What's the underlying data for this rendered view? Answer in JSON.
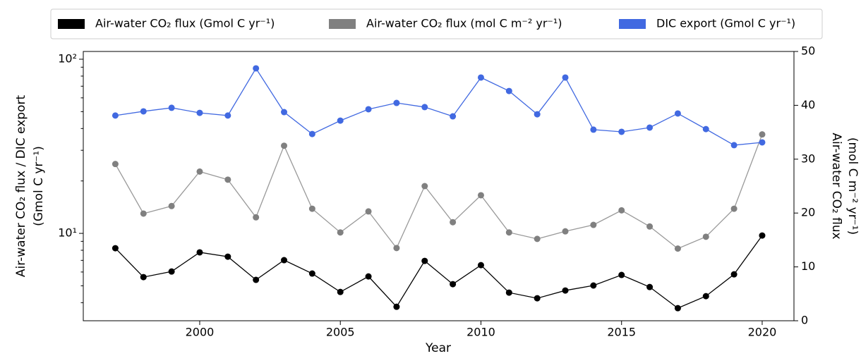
{
  "chart_data": {
    "type": "line",
    "x": [
      1997,
      1998,
      1999,
      2000,
      2001,
      2002,
      2003,
      2004,
      2005,
      2006,
      2007,
      2008,
      2009,
      2010,
      2011,
      2012,
      2013,
      2014,
      2015,
      2016,
      2017,
      2018,
      2019,
      2020
    ],
    "series": [
      {
        "name": "Air-water CO₂ flux (Gmol C yr⁻¹)",
        "color": "#000000",
        "axis": "y",
        "values": [
          8.22,
          5.61,
          6.04,
          7.78,
          7.35,
          5.41,
          7.02,
          5.88,
          4.61,
          5.66,
          3.79,
          6.95,
          5.11,
          6.57,
          4.57,
          4.24,
          4.7,
          5.02,
          5.77,
          4.92,
          3.72,
          4.36,
          5.82,
          9.72
        ]
      },
      {
        "name": "Air-water CO₂ flux (mol C m⁻² yr⁻¹)",
        "color": "#808080",
        "axis": "y2",
        "values": [
          29.1,
          19.9,
          21.3,
          27.7,
          26.2,
          19.2,
          32.5,
          20.8,
          16.4,
          20.3,
          13.5,
          25.0,
          18.3,
          23.3,
          16.4,
          15.2,
          16.6,
          17.8,
          20.5,
          17.5,
          13.4,
          15.6,
          20.8,
          34.6
        ]
      },
      {
        "name": "DIC export (Gmol C yr⁻¹)",
        "color": "#4169e1",
        "axis": "y",
        "values": [
          47.5,
          50.2,
          52.6,
          49.2,
          47.5,
          88.6,
          49.7,
          37.2,
          44.4,
          51.6,
          56.1,
          53.1,
          47.0,
          78.5,
          65.7,
          48.3,
          78.5,
          39.4,
          38.3,
          40.5,
          48.8,
          39.7,
          32.1,
          33.3
        ]
      }
    ],
    "x_label": "Year",
    "y_label": [
      "Air-water CO₂ flux / DIC export",
      "(Gmol C yr⁻¹)"
    ],
    "y2_label": [
      "Air-water CO₂ flux",
      "(mol C m⁻² yr⁻¹)"
    ],
    "xlim": [
      1995.86,
      2021.13
    ],
    "xticks": [
      2000,
      2005,
      2010,
      2015,
      2020
    ],
    "ylim": [
      3.15,
      110.8
    ],
    "y_scale": "log",
    "yticks": [
      {
        "value": 10,
        "label": "10¹"
      },
      {
        "value": 100,
        "label": "10²"
      }
    ],
    "yminorticks": [
      4,
      5,
      6,
      7,
      8,
      9,
      20,
      30,
      40,
      50,
      60,
      70,
      80,
      90
    ],
    "y2lim": [
      0,
      50
    ],
    "y2ticks": [
      0,
      10,
      20,
      30,
      40,
      50
    ],
    "legend": "top"
  }
}
